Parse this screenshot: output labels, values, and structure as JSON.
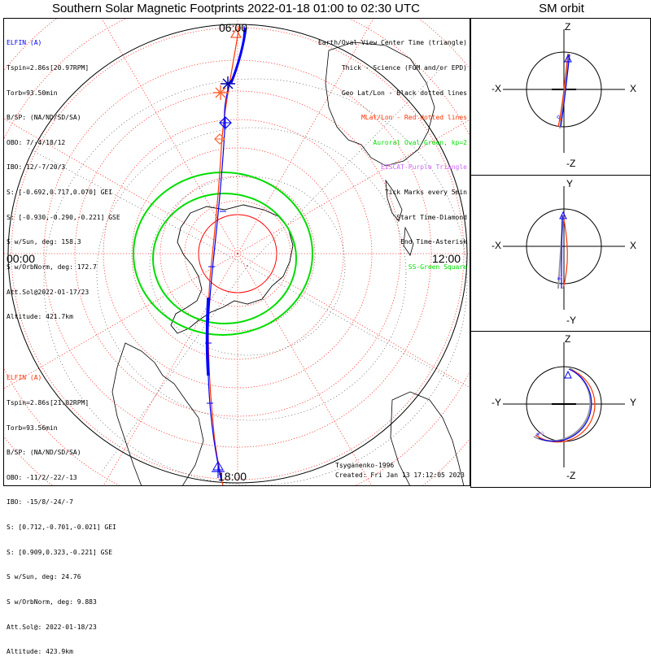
{
  "title": "Southern Solar Magnetic Footprints 2022-01-18 01:00 to 02:30 UTC",
  "sm_title": "SM orbit",
  "map_labels": {
    "top": "06:00",
    "left": "00:00",
    "right": "12:00",
    "bottom": "18:00"
  },
  "elfin_a": {
    "name": "ELFIN (A)",
    "lines": [
      "Tspin=2.86s[20.97RPM]",
      "Torb=93.50min",
      "B/SP: (NA/ND/SD/SA)",
      "OBO: 7/-4/18/12",
      "IBO: 12/-7/20/3",
      "S: [-0.692,0.717,0.070] GEI",
      "S: [-0.930,-0.290,-0.221] GSE",
      "S w/Sun, deg: 158.3",
      "S w/OrbNorm, deg: 172.7",
      "Att.Sol@2022-01-17/23",
      "Altitude: 421.7km"
    ]
  },
  "elfin_b": {
    "name": "ELFIN (A)",
    "lines": [
      "Tspin=2.86s[21.02RPM]",
      "Torb=93.56min",
      "B/SP: (NA/ND/SD/SA)",
      "OBO: -11/2/-22/-13",
      "IBO: -15/8/-24/-7",
      "S: [0.712,-0.701,-0.021] GEI",
      "S: [0.909,0.323,-0.221] GSE",
      "S w/Sun, deg: 24.76",
      "S w/OrbNorm, deg: 9.883",
      "Att.Sol@: 2022-01-18/23",
      "Altitude: 423.9km"
    ]
  },
  "legend": [
    {
      "text": "Earth/Oval View Center Time (triangle)",
      "color": "#000000"
    },
    {
      "text": "Thick - Science (FGM and/or EPD)",
      "color": "#000000"
    },
    {
      "text": "Geo Lat/Lon - Black dotted lines",
      "color": "#000000"
    },
    {
      "text": "MLat/Lon - Red dotted lines",
      "color": "#ff0000"
    },
    {
      "text": "Auroral Oval-Green, kp=2",
      "color": "#00dd00"
    },
    {
      "text": "EISCAT-Purple Triangle",
      "color": "#cc66ff"
    },
    {
      "text": "Tick Marks every 5min",
      "color": "#000000"
    },
    {
      "text": "Start Time-Diamond",
      "color": "#000000"
    },
    {
      "text": "End Time-Asterisk",
      "color": "#000000"
    },
    {
      "text": "SS-Green Square",
      "color": "#00dd00"
    }
  ],
  "credits": {
    "model": "Tsyganenko-1996",
    "created": "Created: Fri Jan 13 17:12:05 2023"
  },
  "sm_panels": [
    {
      "top": "Z",
      "bottom": "-Z",
      "left": "-X",
      "right": "X"
    },
    {
      "top": "Y",
      "bottom": "-Y",
      "left": "-X",
      "right": "X"
    },
    {
      "top": "Z",
      "bottom": "-Z",
      "left": "-Y",
      "right": "Y"
    }
  ],
  "chart_data": {
    "type": "polar footprint map",
    "hemisphere": "Southern",
    "time_range": "2022-01-18 01:00 to 02:30 UTC",
    "mlt_labels": [
      "06:00",
      "12:00",
      "18:00",
      "00:00"
    ],
    "series": [
      {
        "name": "ELFIN (A)",
        "color": "#0000ff"
      },
      {
        "name": "ELFIN (A)",
        "color": "#ff3300"
      }
    ],
    "colors": {
      "grid": "#ff0000",
      "oval": "#00dd00",
      "blue_track": "#0000ff",
      "red_track": "#ff3300"
    }
  }
}
